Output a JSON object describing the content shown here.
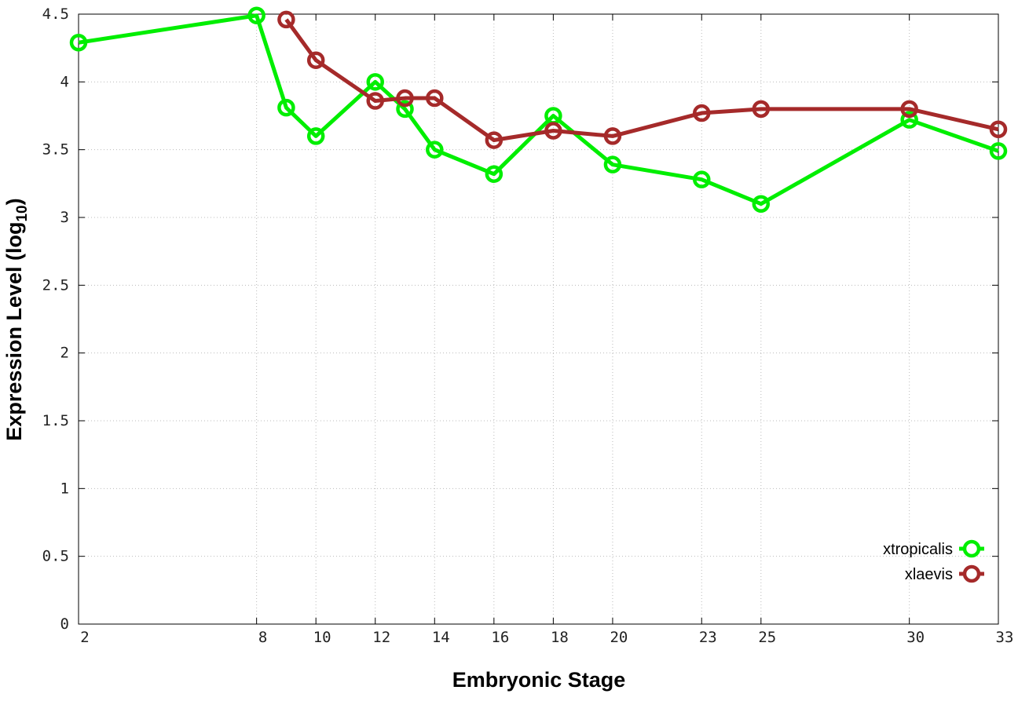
{
  "chart_data": {
    "type": "line",
    "title": "",
    "xlabel": "Embryonic Stage",
    "ylabel": "Expression Level (log",
    "ylabel_sub": "10",
    "ylabel_close": ")",
    "xlim": [
      2,
      33
    ],
    "ylim": [
      0,
      4.5
    ],
    "x_ticks": [
      2,
      8,
      10,
      12,
      14,
      16,
      18,
      20,
      23,
      25,
      30,
      33
    ],
    "y_ticks": [
      0,
      0.5,
      1,
      1.5,
      2,
      2.5,
      3,
      3.5,
      4,
      4.5
    ],
    "y_tick_labels": [
      "0",
      "0.5",
      "1",
      "1.5",
      "2",
      "2.5",
      "3",
      "3.5",
      "4",
      "4.5"
    ],
    "grid": true,
    "legend_position": "bottom-right",
    "series": [
      {
        "name": "xtropicalis",
        "color": "#00ee00",
        "x": [
          2,
          8,
          9,
          10,
          12,
          13,
          14,
          16,
          18,
          20,
          23,
          25,
          30,
          33
        ],
        "y": [
          4.29,
          4.49,
          3.81,
          3.6,
          4.0,
          3.8,
          3.5,
          3.32,
          3.75,
          3.39,
          3.28,
          3.1,
          3.72,
          3.49
        ]
      },
      {
        "name": "xlaevis",
        "color": "#a52a2a",
        "x": [
          9,
          10,
          12,
          13,
          14,
          16,
          18,
          20,
          23,
          25,
          30,
          33
        ],
        "y": [
          4.46,
          4.16,
          3.86,
          3.88,
          3.88,
          3.57,
          3.64,
          3.6,
          3.77,
          3.8,
          3.8,
          3.65
        ]
      }
    ]
  }
}
